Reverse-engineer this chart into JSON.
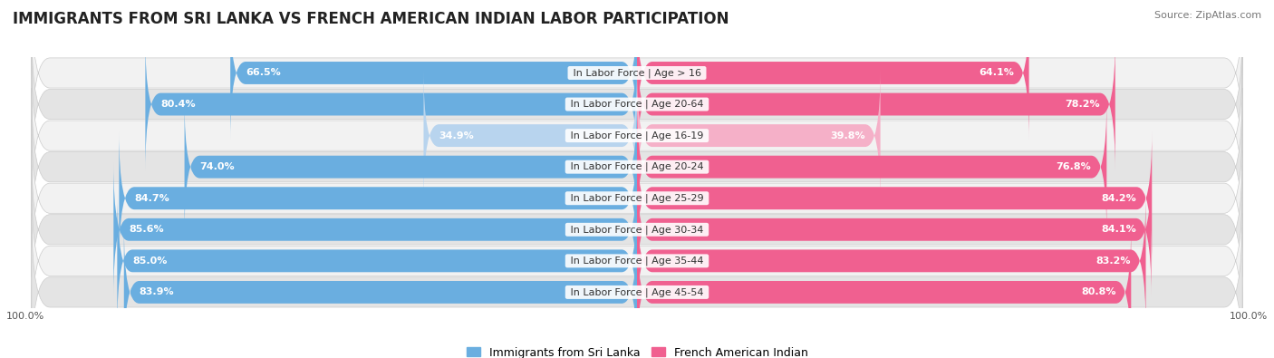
{
  "title": "IMMIGRANTS FROM SRI LANKA VS FRENCH AMERICAN INDIAN LABOR PARTICIPATION",
  "source": "Source: ZipAtlas.com",
  "categories": [
    "In Labor Force | Age > 16",
    "In Labor Force | Age 20-64",
    "In Labor Force | Age 16-19",
    "In Labor Force | Age 20-24",
    "In Labor Force | Age 25-29",
    "In Labor Force | Age 30-34",
    "In Labor Force | Age 35-44",
    "In Labor Force | Age 45-54"
  ],
  "sri_lanka_values": [
    66.5,
    80.4,
    34.9,
    74.0,
    84.7,
    85.6,
    85.0,
    83.9
  ],
  "french_indian_values": [
    64.1,
    78.2,
    39.8,
    76.8,
    84.2,
    84.1,
    83.2,
    80.8
  ],
  "sri_lanka_color_strong": "#6aaee0",
  "sri_lanka_color_light": "#b8d4ee",
  "french_indian_color_strong": "#f06090",
  "french_indian_color_light": "#f5b0c8",
  "row_bg_light": "#f2f2f2",
  "row_bg_dark": "#e4e4e4",
  "max_value": 100.0,
  "legend_sri_lanka": "Immigrants from Sri Lanka",
  "legend_french_indian": "French American Indian",
  "title_fontsize": 12,
  "label_fontsize": 8,
  "value_fontsize": 8,
  "source_fontsize": 8,
  "axis_tick_fontsize": 8
}
